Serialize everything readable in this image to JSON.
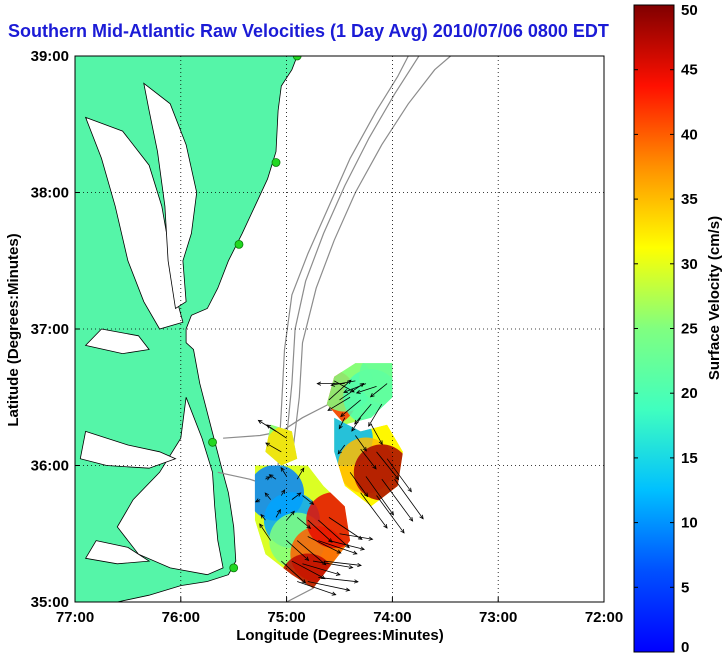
{
  "title": "Southern Mid-Atlantic Raw Velocities (1 Day Avg) 2010/07/06 0800 EDT",
  "chart_data": {
    "type": "map",
    "xlabel": "Longitude (Degrees:Minutes)",
    "ylabel": "Latitude (Degrees:Minutes)",
    "xlim": [
      -77,
      -72
    ],
    "ylim": [
      35,
      39
    ],
    "x_ticks": [
      {
        "value": -77,
        "label": "77:00"
      },
      {
        "value": -76,
        "label": "76:00"
      },
      {
        "value": -75,
        "label": "75:00"
      },
      {
        "value": -74,
        "label": "74:00"
      },
      {
        "value": -73,
        "label": "73:00"
      },
      {
        "value": -72,
        "label": "72:00"
      }
    ],
    "y_ticks": [
      {
        "value": 35,
        "label": "35:00"
      },
      {
        "value": 36,
        "label": "36:00"
      },
      {
        "value": 37,
        "label": "37:00"
      },
      {
        "value": 38,
        "label": "38:00"
      },
      {
        "value": 39,
        "label": "39:00"
      }
    ],
    "grid": true,
    "colorbar": {
      "label": "Surface Velocity (cm/s)",
      "min": 0,
      "max": 50,
      "ticks": [
        0,
        5,
        10,
        15,
        20,
        25,
        30,
        35,
        40,
        45,
        50
      ],
      "colormap": "jet"
    },
    "colors": {
      "land": "#55f5a8",
      "coast": "#000000",
      "bathymetry": "#8c8c8c",
      "title": "#1b1bd6",
      "station": "#22d822"
    },
    "stations": [
      {
        "lon": -74.9,
        "lat": 39.0
      },
      {
        "lon": -75.1,
        "lat": 38.22
      },
      {
        "lon": -75.45,
        "lat": 37.62
      },
      {
        "lon": -75.7,
        "lat": 36.17
      },
      {
        "lon": -75.5,
        "lat": 35.25
      }
    ],
    "velocity_regions": [
      {
        "name": "north-patch",
        "polygon": [
          [
            -74.35,
            36.75
          ],
          [
            -74.0,
            36.75
          ],
          [
            -74.0,
            36.5
          ],
          [
            -74.2,
            36.35
          ],
          [
            -74.45,
            36.3
          ],
          [
            -74.62,
            36.45
          ],
          [
            -74.55,
            36.65
          ]
        ],
        "stops": [
          {
            "lon": -74.6,
            "lat": 36.5,
            "speed": 42
          },
          {
            "lon": -74.45,
            "lat": 36.6,
            "speed": 25
          },
          {
            "lon": -74.2,
            "lat": 36.5,
            "speed": 20
          },
          {
            "lon": -74.05,
            "lat": 36.65,
            "speed": 22
          }
        ]
      },
      {
        "name": "east-patch",
        "polygon": [
          [
            -74.55,
            36.35
          ],
          [
            -74.3,
            36.25
          ],
          [
            -74.05,
            36.3
          ],
          [
            -73.9,
            36.1
          ],
          [
            -73.95,
            35.85
          ],
          [
            -74.2,
            35.7
          ],
          [
            -74.45,
            35.85
          ],
          [
            -74.55,
            36.1
          ]
        ],
        "stops": [
          {
            "lon": -74.45,
            "lat": 36.2,
            "speed": 12
          },
          {
            "lon": -74.25,
            "lat": 36.0,
            "speed": 35
          },
          {
            "lon": -74.1,
            "lat": 35.95,
            "speed": 48
          }
        ]
      },
      {
        "name": "small-patch",
        "polygon": [
          [
            -75.15,
            36.3
          ],
          [
            -74.95,
            36.25
          ],
          [
            -74.9,
            36.05
          ],
          [
            -75.05,
            36.0
          ],
          [
            -75.2,
            36.1
          ]
        ],
        "stops": [
          {
            "lon": -75.08,
            "lat": 36.2,
            "speed": 25
          },
          {
            "lon": -74.95,
            "lat": 36.1,
            "speed": 33
          }
        ]
      },
      {
        "name": "south-patch",
        "polygon": [
          [
            -75.3,
            36.0
          ],
          [
            -74.8,
            36.0
          ],
          [
            -74.65,
            35.85
          ],
          [
            -74.45,
            35.7
          ],
          [
            -74.4,
            35.45
          ],
          [
            -74.6,
            35.25
          ],
          [
            -74.75,
            35.1
          ],
          [
            -74.95,
            35.2
          ],
          [
            -75.2,
            35.35
          ],
          [
            -75.3,
            35.6
          ]
        ],
        "stops": [
          {
            "lon": -75.1,
            "lat": 35.8,
            "speed": 9
          },
          {
            "lon": -74.95,
            "lat": 35.6,
            "speed": 11
          },
          {
            "lon": -74.9,
            "lat": 35.45,
            "speed": 25
          },
          {
            "lon": -74.7,
            "lat": 35.35,
            "speed": 40
          },
          {
            "lon": -74.55,
            "lat": 35.6,
            "speed": 45
          },
          {
            "lon": -74.8,
            "lat": 35.15,
            "speed": 47
          }
        ]
      }
    ],
    "velocity_vectors": [
      {
        "lon": -74.55,
        "lat": 36.62,
        "u": 18,
        "v": -10
      },
      {
        "lon": -74.45,
        "lat": 36.6,
        "u": -25,
        "v": 0
      },
      {
        "lon": -74.35,
        "lat": 36.62,
        "u": -22,
        "v": -4
      },
      {
        "lon": -74.25,
        "lat": 36.6,
        "u": -20,
        "v": -8
      },
      {
        "lon": -74.15,
        "lat": 36.58,
        "u": -18,
        "v": -6
      },
      {
        "lon": -74.05,
        "lat": 36.6,
        "u": -15,
        "v": -12
      },
      {
        "lon": -74.6,
        "lat": 36.48,
        "u": 20,
        "v": 18
      },
      {
        "lon": -74.5,
        "lat": 36.48,
        "u": 22,
        "v": 15
      },
      {
        "lon": -74.4,
        "lat": 36.5,
        "u": -20,
        "v": -12
      },
      {
        "lon": -74.3,
        "lat": 36.48,
        "u": -18,
        "v": -15
      },
      {
        "lon": -74.2,
        "lat": 36.45,
        "u": -15,
        "v": -18
      },
      {
        "lon": -74.1,
        "lat": 36.45,
        "u": -12,
        "v": -20
      },
      {
        "lon": -74.45,
        "lat": 36.35,
        "u": -5,
        "v": -10
      },
      {
        "lon": -74.3,
        "lat": 36.35,
        "u": -8,
        "v": -12
      },
      {
        "lon": -74.2,
        "lat": 36.3,
        "u": 10,
        "v": -18
      },
      {
        "lon": -74.45,
        "lat": 36.15,
        "u": -6,
        "v": -8
      },
      {
        "lon": -74.3,
        "lat": 36.12,
        "u": 14,
        "v": -18
      },
      {
        "lon": -74.15,
        "lat": 36.1,
        "u": 20,
        "v": -25
      },
      {
        "lon": -74.05,
        "lat": 36.05,
        "u": 22,
        "v": -30
      },
      {
        "lon": -74.4,
        "lat": 35.95,
        "u": 16,
        "v": -22
      },
      {
        "lon": -74.25,
        "lat": 35.92,
        "u": 25,
        "v": -35
      },
      {
        "lon": -74.1,
        "lat": 35.9,
        "u": 28,
        "v": -38
      },
      {
        "lon": -73.98,
        "lat": 35.9,
        "u": 26,
        "v": -36
      },
      {
        "lon": -74.3,
        "lat": 35.8,
        "u": 24,
        "v": -32
      },
      {
        "lon": -74.15,
        "lat": 35.78,
        "u": 25,
        "v": -34
      },
      {
        "lon": -74.35,
        "lat": 36.22,
        "u": 10,
        "v": -14
      },
      {
        "lon": -75.1,
        "lat": 36.25,
        "u": -16,
        "v": 10
      },
      {
        "lon": -75.0,
        "lat": 36.2,
        "u": -18,
        "v": 12
      },
      {
        "lon": -75.05,
        "lat": 36.1,
        "u": -14,
        "v": 8
      },
      {
        "lon": -75.2,
        "lat": 35.9,
        "u": 4,
        "v": 2
      },
      {
        "lon": -75.1,
        "lat": 35.9,
        "u": -6,
        "v": 4
      },
      {
        "lon": -75.0,
        "lat": 35.92,
        "u": -5,
        "v": 8
      },
      {
        "lon": -74.9,
        "lat": 35.9,
        "u": 6,
        "v": 10
      },
      {
        "lon": -75.25,
        "lat": 35.75,
        "u": -4,
        "v": -2
      },
      {
        "lon": -75.15,
        "lat": 35.75,
        "u": -5,
        "v": 6
      },
      {
        "lon": -75.05,
        "lat": 35.78,
        "u": 3,
        "v": 5
      },
      {
        "lon": -74.95,
        "lat": 35.75,
        "u": 8,
        "v": 6
      },
      {
        "lon": -74.85,
        "lat": 35.78,
        "u": 10,
        "v": -8
      },
      {
        "lon": -75.2,
        "lat": 35.6,
        "u": -4,
        "v": 5
      },
      {
        "lon": -75.1,
        "lat": 35.62,
        "u": 4,
        "v": 7
      },
      {
        "lon": -75.0,
        "lat": 35.6,
        "u": 7,
        "v": 8
      },
      {
        "lon": -74.9,
        "lat": 35.62,
        "u": 12,
        "v": -10
      },
      {
        "lon": -74.8,
        "lat": 35.6,
        "u": 22,
        "v": -20
      },
      {
        "lon": -74.7,
        "lat": 35.6,
        "u": 28,
        "v": -25
      },
      {
        "lon": -74.6,
        "lat": 35.62,
        "u": 30,
        "v": -20
      },
      {
        "lon": -75.15,
        "lat": 35.45,
        "u": -10,
        "v": 15
      },
      {
        "lon": -75.0,
        "lat": 35.45,
        "u": 20,
        "v": -18
      },
      {
        "lon": -74.9,
        "lat": 35.45,
        "u": 26,
        "v": -22
      },
      {
        "lon": -74.8,
        "lat": 35.48,
        "u": 30,
        "v": -15
      },
      {
        "lon": -74.7,
        "lat": 35.45,
        "u": 35,
        "v": -12
      },
      {
        "lon": -74.6,
        "lat": 35.45,
        "u": 32,
        "v": -8
      },
      {
        "lon": -74.5,
        "lat": 35.5,
        "u": 30,
        "v": -5
      },
      {
        "lon": -75.05,
        "lat": 35.3,
        "u": 22,
        "v": -20
      },
      {
        "lon": -74.95,
        "lat": 35.3,
        "u": 30,
        "v": -16
      },
      {
        "lon": -74.85,
        "lat": 35.28,
        "u": 34,
        "v": -10
      },
      {
        "lon": -74.75,
        "lat": 35.3,
        "u": 36,
        "v": -6
      },
      {
        "lon": -74.65,
        "lat": 35.3,
        "u": 34,
        "v": -4
      },
      {
        "lon": -74.9,
        "lat": 35.15,
        "u": 35,
        "v": -12
      },
      {
        "lon": -74.8,
        "lat": 35.15,
        "u": 38,
        "v": -8
      },
      {
        "lon": -74.7,
        "lat": 35.18,
        "u": 36,
        "v": -4
      }
    ],
    "coastline": [
      [
        [
          -77,
          39
        ],
        [
          -74.9,
          39
        ],
        [
          -74.95,
          38.9
        ],
        [
          -75.05,
          38.78
        ],
        [
          -75.08,
          38.6
        ],
        [
          -75.1,
          38.3
        ],
        [
          -75.18,
          38.1
        ],
        [
          -75.3,
          37.9
        ],
        [
          -75.42,
          37.7
        ],
        [
          -75.55,
          37.5
        ],
        [
          -75.65,
          37.3
        ],
        [
          -75.75,
          37.15
        ],
        [
          -75.9,
          37.1
        ],
        [
          -75.95,
          37.0
        ],
        [
          -75.95,
          36.9
        ],
        [
          -75.88,
          36.85
        ],
        [
          -75.82,
          36.6
        ],
        [
          -75.72,
          36.3
        ],
        [
          -75.62,
          36.0
        ],
        [
          -75.55,
          35.8
        ],
        [
          -75.5,
          35.55
        ],
        [
          -75.48,
          35.3
        ],
        [
          -75.55,
          35.2
        ],
        [
          -75.75,
          35.15
        ],
        [
          -76.0,
          35.12
        ],
        [
          -76.3,
          35.05
        ],
        [
          -76.6,
          35.0
        ],
        [
          -77,
          35.0
        ]
      ]
    ],
    "water_inlets": [
      [
        [
          -76.9,
          38.55
        ],
        [
          -76.55,
          38.45
        ],
        [
          -76.3,
          38.2
        ],
        [
          -76.18,
          37.9
        ],
        [
          -76.1,
          37.55
        ],
        [
          -76.05,
          37.25
        ],
        [
          -75.98,
          37.05
        ],
        [
          -76.2,
          37.0
        ],
        [
          -76.35,
          37.2
        ],
        [
          -76.5,
          37.5
        ],
        [
          -76.62,
          37.9
        ],
        [
          -76.75,
          38.25
        ]
      ],
      [
        [
          -76.35,
          38.8
        ],
        [
          -76.1,
          38.65
        ],
        [
          -75.95,
          38.35
        ],
        [
          -75.85,
          38.0
        ],
        [
          -75.9,
          37.7
        ],
        [
          -75.98,
          37.5
        ],
        [
          -75.95,
          37.2
        ],
        [
          -76.05,
          37.15
        ],
        [
          -76.12,
          37.5
        ],
        [
          -76.15,
          37.9
        ],
        [
          -76.22,
          38.3
        ],
        [
          -76.3,
          38.6
        ]
      ],
      [
        [
          -75.95,
          36.5
        ],
        [
          -75.8,
          36.2
        ],
        [
          -75.7,
          35.95
        ],
        [
          -75.68,
          35.7
        ],
        [
          -75.65,
          35.45
        ],
        [
          -75.6,
          35.25
        ],
        [
          -75.75,
          35.2
        ],
        [
          -76.1,
          35.25
        ],
        [
          -76.4,
          35.35
        ],
        [
          -76.6,
          35.55
        ],
        [
          -76.45,
          35.75
        ],
        [
          -76.2,
          35.95
        ],
        [
          -76.0,
          36.2
        ]
      ],
      [
        [
          -76.9,
          36.25
        ],
        [
          -76.5,
          36.15
        ],
        [
          -76.2,
          36.1
        ],
        [
          -76.05,
          36.05
        ],
        [
          -76.3,
          35.98
        ],
        [
          -76.7,
          36.0
        ],
        [
          -76.95,
          36.05
        ]
      ],
      [
        [
          -76.8,
          35.45
        ],
        [
          -76.5,
          35.4
        ],
        [
          -76.3,
          35.3
        ],
        [
          -76.6,
          35.28
        ],
        [
          -76.9,
          35.32
        ]
      ],
      [
        [
          -76.75,
          37.0
        ],
        [
          -76.4,
          36.95
        ],
        [
          -76.3,
          36.85
        ],
        [
          -76.55,
          36.82
        ],
        [
          -76.9,
          36.88
        ]
      ]
    ],
    "bathymetry": [
      [
        [
          -74.95,
          36.05
        ],
        [
          -74.88,
          36.5
        ],
        [
          -74.85,
          36.9
        ],
        [
          -74.72,
          37.3
        ],
        [
          -74.55,
          37.65
        ],
        [
          -74.35,
          38.0
        ],
        [
          -74.1,
          38.35
        ],
        [
          -73.85,
          38.65
        ],
        [
          -73.6,
          38.9
        ],
        [
          -73.45,
          39.0
        ]
      ],
      [
        [
          -75.0,
          36.2
        ],
        [
          -74.95,
          36.6
        ],
        [
          -74.92,
          37.0
        ],
        [
          -74.82,
          37.35
        ],
        [
          -74.65,
          37.7
        ],
        [
          -74.45,
          38.05
        ],
        [
          -74.22,
          38.4
        ],
        [
          -73.98,
          38.72
        ],
        [
          -73.75,
          39.0
        ]
      ],
      [
        [
          -75.08,
          36.0
        ],
        [
          -75.05,
          36.4
        ],
        [
          -75.02,
          36.85
        ],
        [
          -74.95,
          37.25
        ],
        [
          -74.8,
          37.55
        ],
        [
          -74.6,
          37.9
        ],
        [
          -74.4,
          38.25
        ],
        [
          -74.15,
          38.6
        ],
        [
          -73.95,
          38.85
        ],
        [
          -73.85,
          39.0
        ]
      ],
      [
        [
          -75.6,
          36.2
        ],
        [
          -75.25,
          36.22
        ],
        [
          -75.05,
          36.25
        ],
        [
          -74.85,
          36.35
        ],
        [
          -74.6,
          36.45
        ],
        [
          -74.4,
          36.55
        ],
        [
          -74.1,
          36.7
        ]
      ],
      [
        [
          -75.65,
          35.95
        ],
        [
          -75.35,
          35.9
        ],
        [
          -75.15,
          35.85
        ],
        [
          -74.9,
          35.7
        ],
        [
          -74.7,
          35.55
        ],
        [
          -74.6,
          35.3
        ],
        [
          -74.75,
          35.1
        ],
        [
          -75.0,
          35.0
        ]
      ]
    ]
  }
}
